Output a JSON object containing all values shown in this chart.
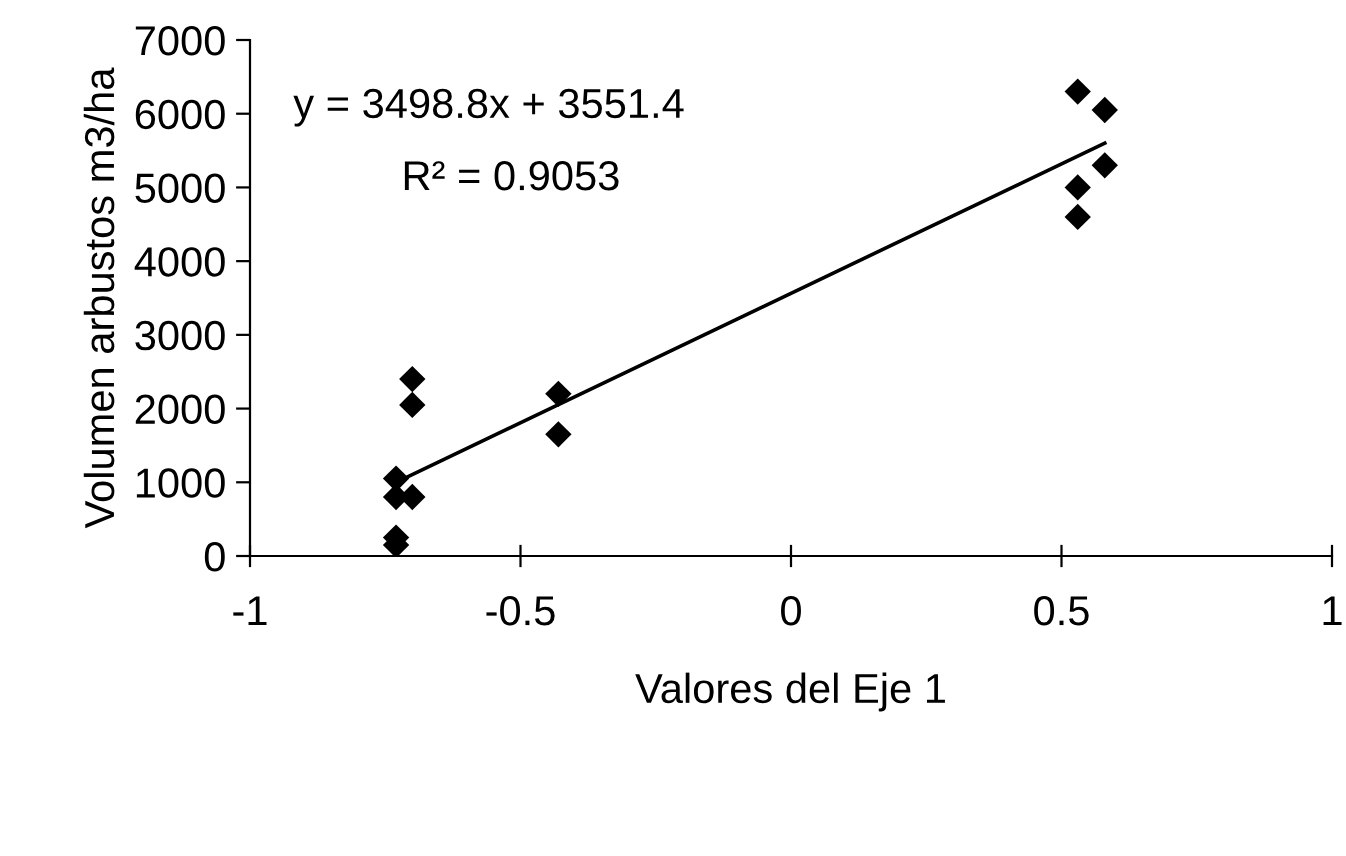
{
  "chart_data": {
    "type": "scatter",
    "xlabel": "Valores del Eje 1",
    "ylabel": "Volumen arbustos m3/ha",
    "xlim": [
      -1,
      1
    ],
    "ylim": [
      0,
      7000
    ],
    "xticks": [
      -1,
      -0.5,
      0,
      0.5,
      1
    ],
    "yticks": [
      0,
      1000,
      2000,
      3000,
      4000,
      5000,
      6000,
      7000
    ],
    "grid": false,
    "series": [
      {
        "color": "#000000",
        "marker": "diamond",
        "x": [
          -0.73,
          -0.73,
          -0.7,
          -0.7,
          -0.7,
          -0.73,
          -0.73,
          -0.43,
          -0.43,
          0.53,
          0.58,
          0.58,
          0.53,
          0.53
        ],
        "values": [
          1050,
          800,
          800,
          2400,
          2050,
          250,
          150,
          2200,
          1650,
          6300,
          6050,
          5300,
          5000,
          4600
        ]
      },
      {
        "type": "line",
        "color": "#000000",
        "x": [
          -0.73,
          0.58
        ],
        "values": [
          1000,
          5600
        ]
      }
    ],
    "annotations": [
      "y = 3498.8x + 3551.4",
      "R² = 0.9053"
    ]
  }
}
